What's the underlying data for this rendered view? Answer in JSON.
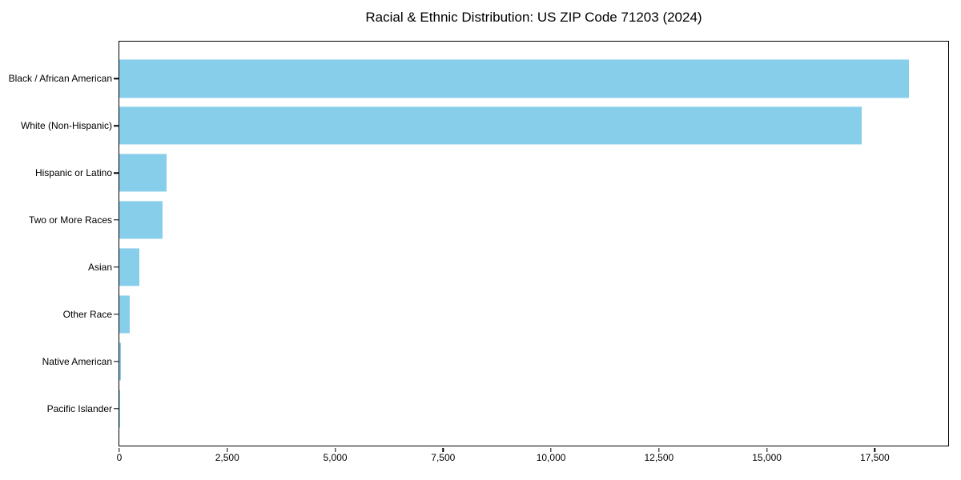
{
  "figure": {
    "background": "#ffffff"
  },
  "chart_data": {
    "type": "bar",
    "orientation": "horizontal",
    "title": "Racial & Ethnic Distribution: US ZIP Code 71203 (2024)",
    "categories": [
      "Black / African American",
      "White (Non-Hispanic)",
      "Hispanic or Latino",
      "Two or More Races",
      "Asian",
      "Other Race",
      "Native American",
      "Pacific Islander"
    ],
    "values": [
      18300,
      17200,
      1100,
      1000,
      460,
      250,
      40,
      10
    ],
    "xlabel": "",
    "ylabel": "",
    "xlim": [
      0,
      19200
    ],
    "x_ticks": [
      {
        "value": 0,
        "label": "0"
      },
      {
        "value": 2500,
        "label": "2,500"
      },
      {
        "value": 5000,
        "label": "5,000"
      },
      {
        "value": 7500,
        "label": "7,500"
      },
      {
        "value": 10000,
        "label": "10,000"
      },
      {
        "value": 12500,
        "label": "12,500"
      },
      {
        "value": 15000,
        "label": "15,000"
      },
      {
        "value": 17500,
        "label": "17,500"
      }
    ],
    "bar_color": "#87CEEB",
    "axis_color": "#000000",
    "text_color": "#000000",
    "grid": false,
    "legend": "none"
  }
}
